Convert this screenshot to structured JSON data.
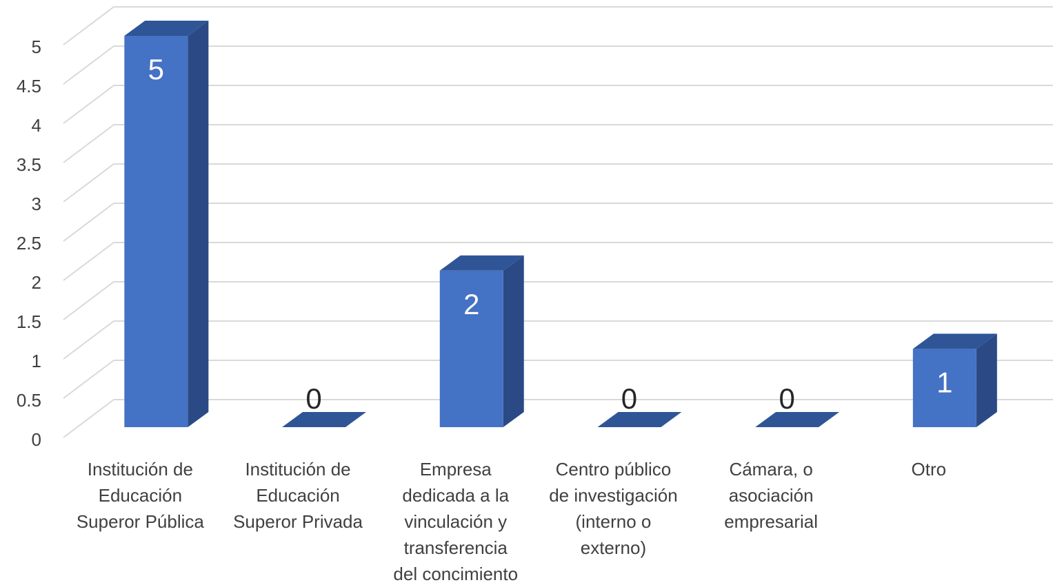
{
  "chart_data": {
    "type": "bar3d",
    "categories": [
      "Institución de\nEducación\nSuperor Pública",
      "Institución de\nEducación\nSuperor Privada",
      "Empresa\ndedicada a la\nvinculación y\ntransferencia\ndel concimiento",
      "Centro público\nde investigación\n(interno o\nexterno)",
      "Cámara, o\nasociación\nempresarial",
      "Otro"
    ],
    "values": [
      5,
      0,
      2,
      0,
      0,
      1
    ],
    "color": "#4472c4",
    "ylim": [
      0,
      5
    ],
    "yticks": [
      0,
      0.5,
      1,
      1.5,
      2,
      2.5,
      3,
      3.5,
      4,
      4.5,
      5
    ],
    "grid": true
  }
}
